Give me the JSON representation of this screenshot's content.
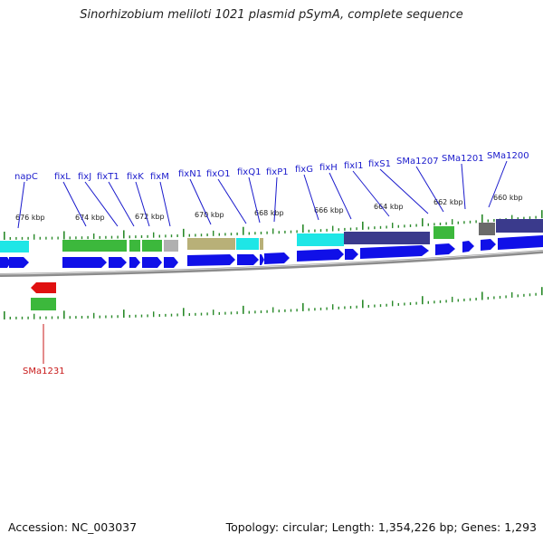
{
  "title": "Sinorhizobium meliloti 1021 plasmid pSymA, complete sequence",
  "accession": "Accession: NC_003037",
  "summary": "Topology: circular; Length: 1,354,226 bp; Genes: 1,293",
  "colors": {
    "forward_cds": "#1010e8",
    "reverse_cds": "#e01010",
    "cog_green": "#3cb83c",
    "cog_cyan": "#1ee6e6",
    "cog_tan": "#b8b078",
    "cog_gray": "#b0b0b0",
    "cog_navy": "#3a3a8c",
    "cog_darkgray": "#6a6a6a",
    "backbone": "#8c8c8c",
    "tick": "#2a8a2a"
  },
  "kbp_labels": [
    {
      "text": "676 kbp"
    },
    {
      "text": "674 kbp"
    },
    {
      "text": "672 kbp"
    },
    {
      "text": "670 kbp"
    },
    {
      "text": "668 kbp"
    },
    {
      "text": "666 kbp"
    },
    {
      "text": "664 kbp"
    },
    {
      "text": "662 kbp"
    },
    {
      "text": "660 kbp"
    }
  ],
  "gene_labels": [
    {
      "text": "napC"
    },
    {
      "text": "fixL"
    },
    {
      "text": "fixJ"
    },
    {
      "text": "fixT1"
    },
    {
      "text": "fixK"
    },
    {
      "text": "fixM"
    },
    {
      "text": "fixN1"
    },
    {
      "text": "fixO1"
    },
    {
      "text": "fixQ1"
    },
    {
      "text": "fixP1"
    },
    {
      "text": "fixG"
    },
    {
      "text": "fixH"
    },
    {
      "text": "fixI1"
    },
    {
      "text": "fixS1"
    },
    {
      "text": "SMa1207"
    },
    {
      "text": "SMa1201"
    },
    {
      "text": "SMa1200"
    },
    {
      "text": "SMa1231"
    }
  ]
}
